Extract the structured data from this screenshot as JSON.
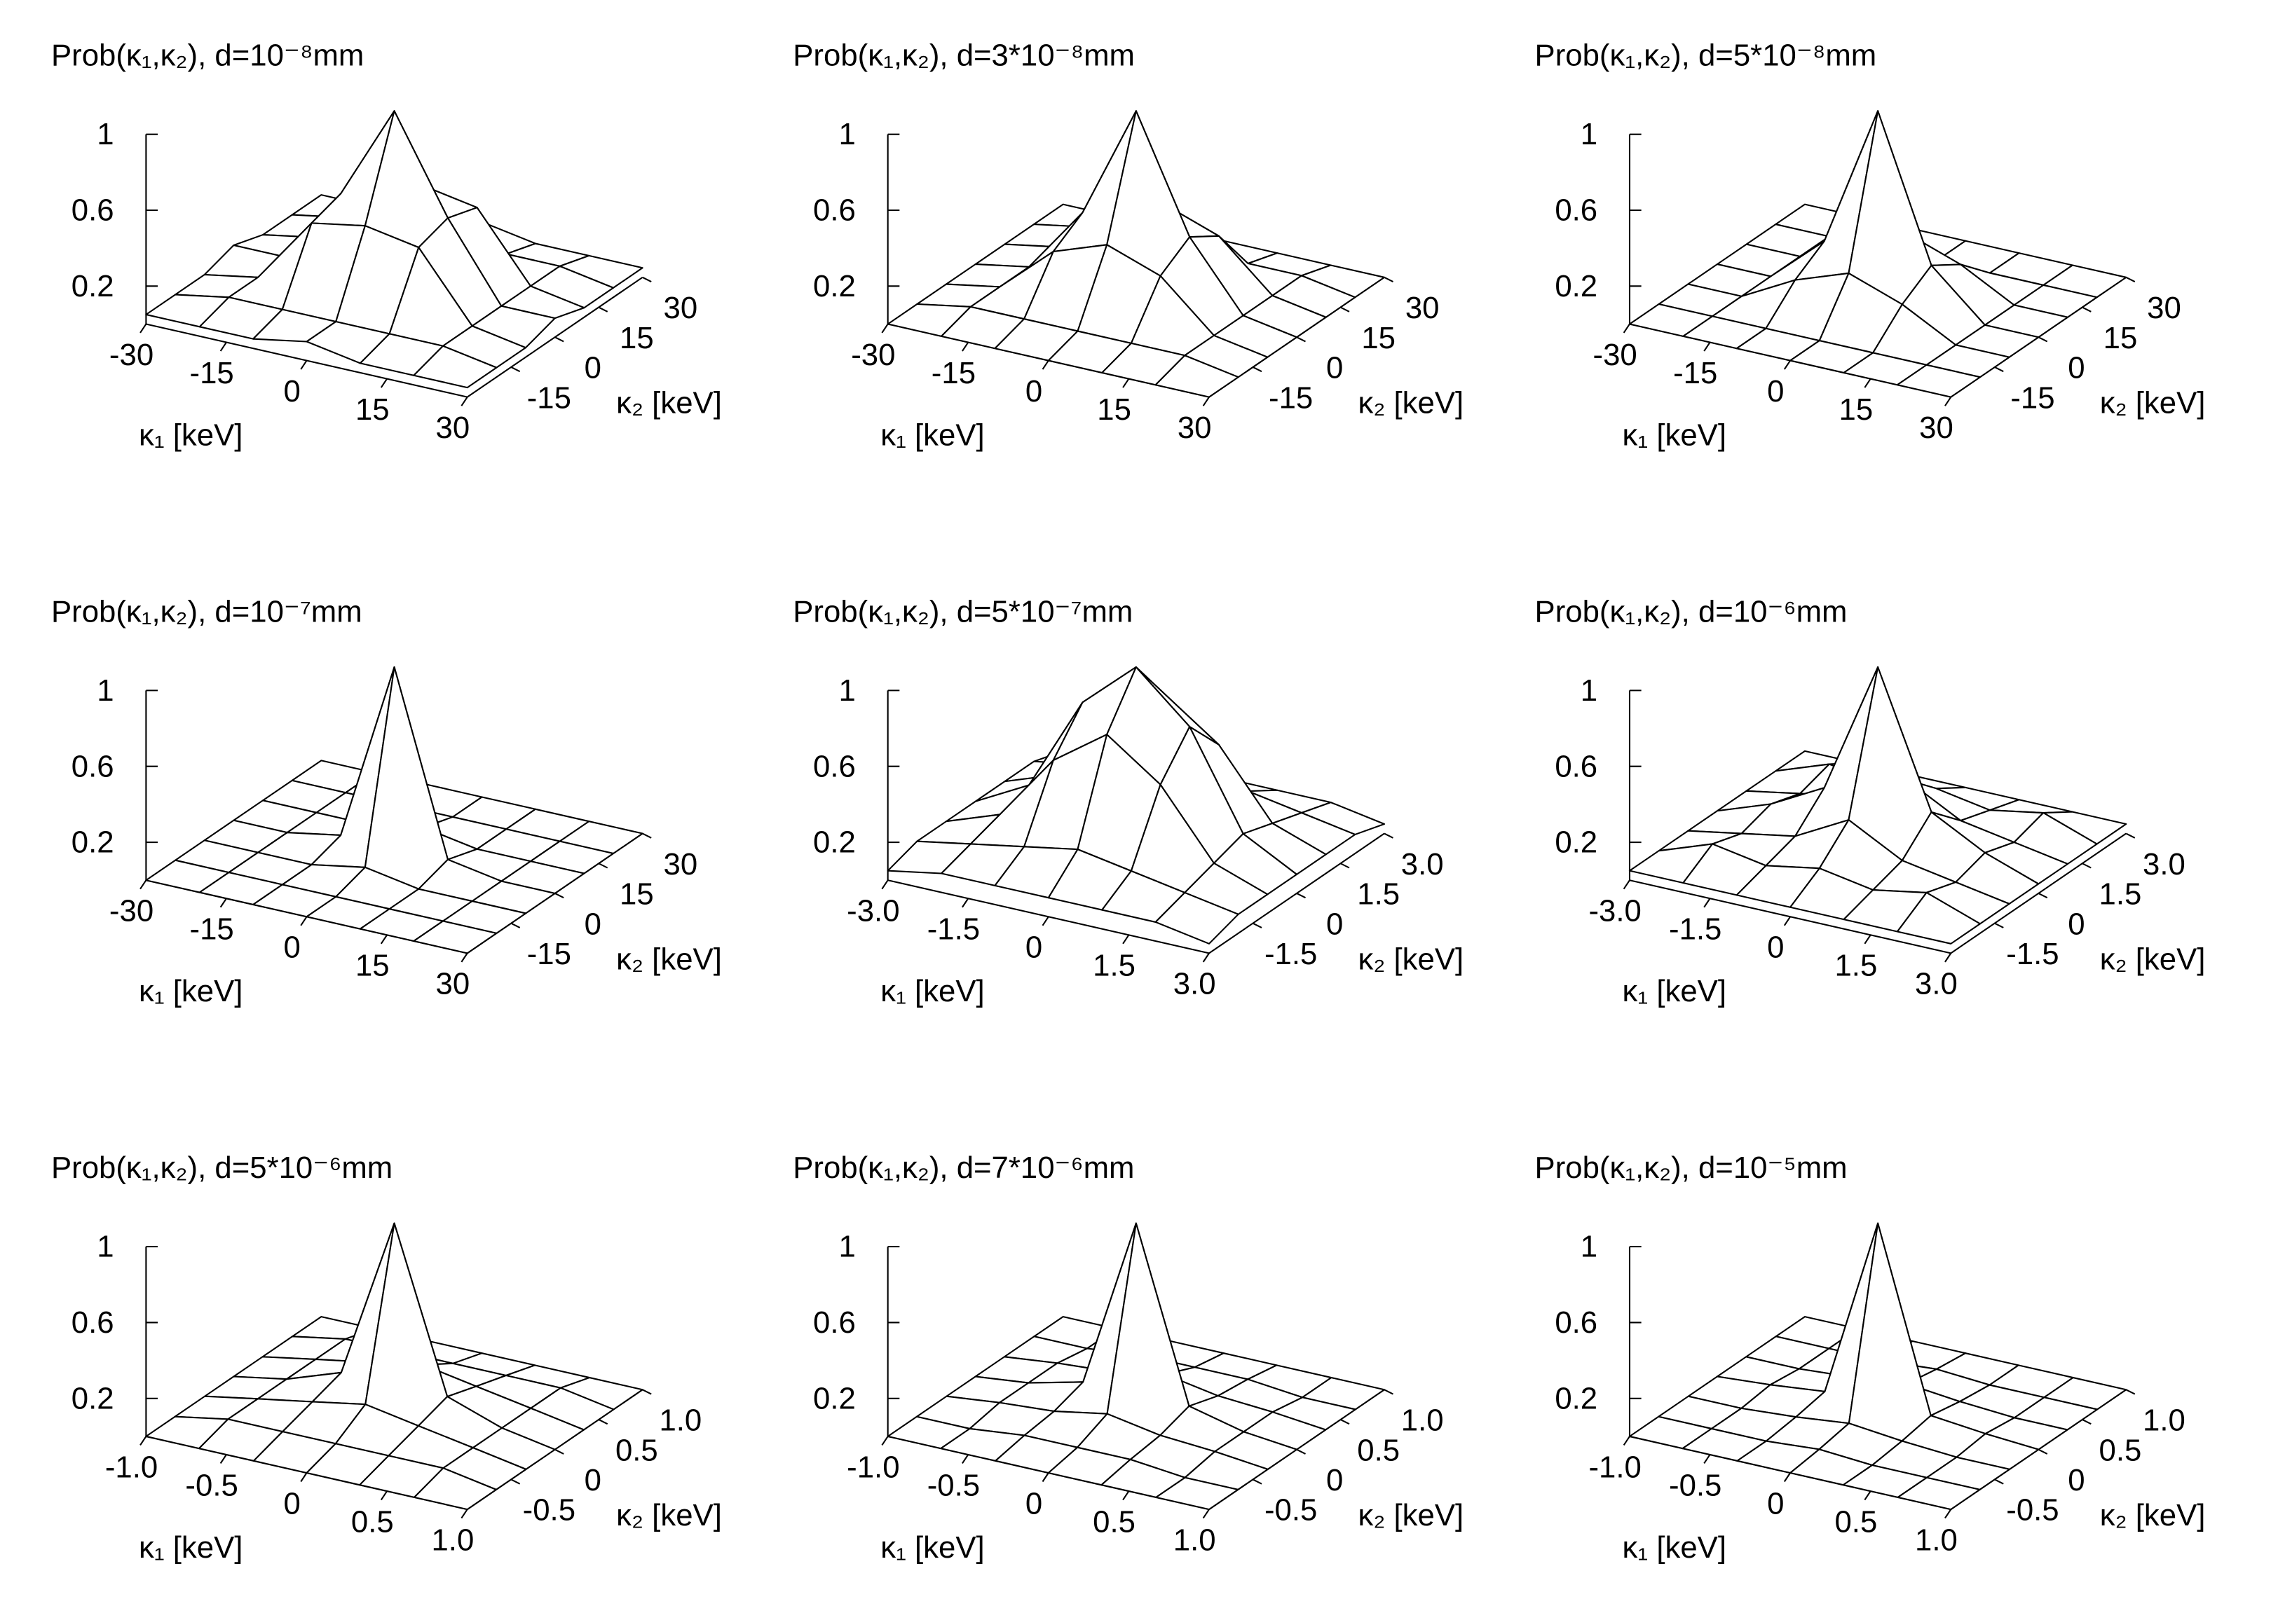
{
  "chart_data": [
    {
      "type": "surface",
      "title": "Prob(κ₁,κ₂), d=10⁻⁸mm",
      "x_label": "κ₁ [keV]",
      "y_label": "κ₂ [keV]",
      "x": [
        -30,
        -20,
        -10,
        0,
        10,
        20,
        30
      ],
      "y": [
        -30,
        -20,
        -10,
        0,
        10,
        20,
        30
      ],
      "z": [
        [
          0.05,
          0.05,
          0.05,
          0.1,
          0.05,
          0.05,
          0.05
        ],
        [
          0.05,
          0.1,
          0.1,
          0.1,
          0.1,
          0.1,
          0.05
        ],
        [
          0.05,
          0.1,
          0.45,
          0.5,
          0.45,
          0.1,
          0.05
        ],
        [
          0.1,
          0.1,
          0.5,
          1,
          0.5,
          0.1,
          0.1
        ],
        [
          0.05,
          0.1,
          0.45,
          0.5,
          0.45,
          0.1,
          0.05
        ],
        [
          0.05,
          0.1,
          0.1,
          0.1,
          0.1,
          0.1,
          0.05
        ],
        [
          0.05,
          0.05,
          0.05,
          0.1,
          0.05,
          0.05,
          0.05
        ]
      ],
      "xlim": [
        -30,
        30
      ],
      "xticks": [
        -30,
        -15,
        0,
        15,
        30
      ],
      "ylim": [
        -30,
        30
      ],
      "yticks": [
        -15,
        0,
        15,
        30
      ],
      "zlim": [
        0,
        1
      ],
      "zticks": [
        0.2,
        0.6,
        1
      ]
    },
    {
      "type": "surface",
      "title": "Prob(κ₁,κ₂), d=3*10⁻⁸mm",
      "x_label": "κ₁ [keV]",
      "y_label": "κ₂ [keV]",
      "x": [
        -30,
        -20,
        -10,
        0,
        10,
        20,
        30
      ],
      "y": [
        -30,
        -20,
        -10,
        0,
        10,
        20,
        30
      ],
      "z": [
        [
          0,
          0,
          0,
          0,
          0,
          0,
          0
        ],
        [
          0,
          0.05,
          0.05,
          0.05,
          0.05,
          0.05,
          0
        ],
        [
          0,
          0.05,
          0.3,
          0.4,
          0.3,
          0.05,
          0
        ],
        [
          0,
          0.05,
          0.4,
          1,
          0.4,
          0.05,
          0
        ],
        [
          0,
          0.05,
          0.3,
          0.4,
          0.3,
          0.05,
          0
        ],
        [
          0,
          0.05,
          0.05,
          0.05,
          0.05,
          0.05,
          0
        ],
        [
          0,
          0,
          0,
          0,
          0,
          0,
          0
        ]
      ],
      "xlim": [
        -30,
        30
      ],
      "xticks": [
        -30,
        -15,
        0,
        15,
        30
      ],
      "ylim": [
        -30,
        30
      ],
      "yticks": [
        -15,
        0,
        15,
        30
      ],
      "zlim": [
        0,
        1
      ],
      "zticks": [
        0.2,
        0.6,
        1
      ]
    },
    {
      "type": "surface",
      "title": "Prob(κ₁,κ₂), d=5*10⁻⁸mm",
      "x_label": "κ₁ [keV]",
      "y_label": "κ₂ [keV]",
      "x": [
        -30,
        -20,
        -10,
        0,
        10,
        20,
        30
      ],
      "y": [
        -30,
        -20,
        -10,
        0,
        10,
        20,
        30
      ],
      "z": [
        [
          0,
          0,
          0,
          0,
          0,
          0,
          0
        ],
        [
          0,
          0,
          0,
          0,
          0,
          0,
          0
        ],
        [
          0,
          0,
          0.15,
          0.25,
          0.15,
          0,
          0
        ],
        [
          0,
          0,
          0.25,
          1,
          0.25,
          0,
          0
        ],
        [
          0,
          0,
          0.15,
          0.25,
          0.15,
          0,
          0
        ],
        [
          0,
          0,
          0,
          0,
          0,
          0,
          0
        ],
        [
          0,
          0,
          0,
          0,
          0,
          0,
          0
        ]
      ],
      "xlim": [
        -30,
        30
      ],
      "xticks": [
        -30,
        -15,
        0,
        15,
        30
      ],
      "ylim": [
        -30,
        30
      ],
      "yticks": [
        -15,
        0,
        15,
        30
      ],
      "zlim": [
        0,
        1
      ],
      "zticks": [
        0.2,
        0.6,
        1
      ]
    },
    {
      "type": "surface",
      "title": "Prob(κ₁,κ₂), d=10⁻⁷mm",
      "x_label": "κ₁ [keV]",
      "y_label": "κ₂ [keV]",
      "x": [
        -30,
        -20,
        -10,
        0,
        10,
        20,
        30
      ],
      "y": [
        -30,
        -20,
        -10,
        0,
        10,
        20,
        30
      ],
      "z": [
        [
          0,
          0,
          0,
          0,
          0,
          0,
          0
        ],
        [
          0,
          0,
          0,
          0,
          0,
          0,
          0
        ],
        [
          0,
          0,
          0,
          0.05,
          0,
          0,
          0
        ],
        [
          0,
          0,
          0.05,
          1,
          0.05,
          0,
          0
        ],
        [
          0,
          0,
          0,
          0.05,
          0,
          0,
          0
        ],
        [
          0,
          0,
          0,
          0,
          0,
          0,
          0
        ],
        [
          0,
          0,
          0,
          0,
          0,
          0,
          0
        ]
      ],
      "xlim": [
        -30,
        30
      ],
      "xticks": [
        -30,
        -15,
        0,
        15,
        30
      ],
      "ylim": [
        -30,
        30
      ],
      "yticks": [
        -15,
        0,
        15,
        30
      ],
      "zlim": [
        0,
        1
      ],
      "zticks": [
        0.2,
        0.6,
        1
      ]
    },
    {
      "type": "surface",
      "title": "Prob(κ₁,κ₂), d=5*10⁻⁷mm",
      "x_label": "κ₁ [keV]",
      "y_label": "κ₂ [keV]",
      "x": [
        -3,
        -2,
        -1,
        0,
        1,
        2,
        3
      ],
      "y": [
        -3,
        -2,
        -1,
        0,
        1,
        2,
        3
      ],
      "z": [
        [
          0.05,
          0.1,
          0.1,
          0.1,
          0.1,
          0.1,
          0.05
        ],
        [
          0.1,
          0.15,
          0.2,
          0.25,
          0.2,
          0.15,
          0.1
        ],
        [
          0.1,
          0.2,
          0.55,
          0.75,
          0.55,
          0.2,
          0.1
        ],
        [
          0.1,
          0.25,
          0.75,
          1,
          0.75,
          0.25,
          0.1
        ],
        [
          0.1,
          0.2,
          0.55,
          0.75,
          0.55,
          0.2,
          0.1
        ],
        [
          0.1,
          0.15,
          0.2,
          0.25,
          0.2,
          0.15,
          0.1
        ],
        [
          0.05,
          0.1,
          0.1,
          0.1,
          0.1,
          0.1,
          0.05
        ]
      ],
      "xlim": [
        -3,
        3
      ],
      "xticks": [
        {
          "value": -3,
          "label": "-3.0"
        },
        -1.5,
        0,
        1.5,
        {
          "value": 3,
          "label": "3.0"
        }
      ],
      "ylim": [
        -3,
        3
      ],
      "yticks": [
        -1.5,
        0,
        1.5,
        {
          "value": 3,
          "label": "3.0"
        }
      ],
      "zlim": [
        0,
        1
      ],
      "zticks": [
        0.2,
        0.6,
        1
      ]
    },
    {
      "type": "surface",
      "title": "Prob(κ₁,κ₂), d=10⁻⁶mm",
      "x_label": "κ₁ [keV]",
      "y_label": "κ₂ [keV]",
      "x": [
        -3,
        -2,
        -1,
        0,
        1,
        2,
        3
      ],
      "y": [
        -3,
        -2,
        -1,
        0,
        1,
        2,
        3
      ],
      "z": [
        [
          0.05,
          0.05,
          0.05,
          0.05,
          0.05,
          0.05,
          0.05
        ],
        [
          0.05,
          0.15,
          0.1,
          0.15,
          0.1,
          0.15,
          0.05
        ],
        [
          0.05,
          0.1,
          0.15,
          0.3,
          0.15,
          0.1,
          0.05
        ],
        [
          0.05,
          0.15,
          0.3,
          1,
          0.3,
          0.15,
          0.05
        ],
        [
          0.05,
          0.1,
          0.15,
          0.3,
          0.15,
          0.1,
          0.05
        ],
        [
          0.05,
          0.15,
          0.1,
          0.15,
          0.1,
          0.15,
          0.05
        ],
        [
          0.05,
          0.05,
          0.05,
          0.05,
          0.05,
          0.05,
          0.05
        ]
      ],
      "xlim": [
        -3,
        3
      ],
      "xticks": [
        {
          "value": -3,
          "label": "-3.0"
        },
        -1.5,
        0,
        1.5,
        {
          "value": 3,
          "label": "3.0"
        }
      ],
      "ylim": [
        -3,
        3
      ],
      "yticks": [
        -1.5,
        0,
        1.5,
        {
          "value": 3,
          "label": "3.0"
        }
      ],
      "zlim": [
        0,
        1
      ],
      "zticks": [
        0.2,
        0.6,
        1
      ]
    },
    {
      "type": "surface",
      "title": "Prob(κ₁,κ₂), d=5*10⁻⁶mm",
      "x_label": "κ₁ [keV]",
      "y_label": "κ₂ [keV]",
      "x": [
        -1,
        -0.67,
        -0.33,
        0,
        0.33,
        0.67,
        1
      ],
      "y": [
        -1,
        -0.67,
        -0.33,
        0,
        0.33,
        0.67,
        1
      ],
      "z": [
        [
          0,
          0,
          0,
          0,
          0,
          0,
          0
        ],
        [
          0,
          0.05,
          0.05,
          0.05,
          0.05,
          0.05,
          0
        ],
        [
          0,
          0.05,
          0.1,
          0.15,
          0.1,
          0.05,
          0
        ],
        [
          0,
          0.05,
          0.15,
          1,
          0.15,
          0.05,
          0
        ],
        [
          0,
          0.05,
          0.1,
          0.15,
          0.1,
          0.05,
          0
        ],
        [
          0,
          0.05,
          0.05,
          0.05,
          0.05,
          0.05,
          0
        ],
        [
          0,
          0,
          0,
          0,
          0,
          0,
          0
        ]
      ],
      "xlim": [
        -1,
        1
      ],
      "xticks": [
        {
          "value": -1,
          "label": "-1.0"
        },
        -0.5,
        0,
        0.5,
        {
          "value": 1,
          "label": "1.0"
        }
      ],
      "ylim": [
        -1,
        1
      ],
      "yticks": [
        -0.5,
        0,
        0.5,
        {
          "value": 1,
          "label": "1.0"
        }
      ],
      "zlim": [
        0,
        1
      ],
      "zticks": [
        0.2,
        0.6,
        1
      ]
    },
    {
      "type": "surface",
      "title": "Prob(κ₁,κ₂), d=7*10⁻⁶mm",
      "x_label": "κ₁ [keV]",
      "y_label": "κ₂ [keV]",
      "x": [
        -1,
        -0.67,
        -0.33,
        0,
        0.33,
        0.67,
        1
      ],
      "y": [
        -1,
        -0.67,
        -0.33,
        0,
        0.33,
        0.67,
        1
      ],
      "z": [
        [
          0,
          0,
          0,
          0,
          0,
          0,
          0
        ],
        [
          0,
          0,
          0.03,
          0.03,
          0.03,
          0,
          0
        ],
        [
          0,
          0.03,
          0.05,
          0.1,
          0.05,
          0.03,
          0
        ],
        [
          0,
          0.03,
          0.1,
          1,
          0.1,
          0.03,
          0
        ],
        [
          0,
          0.03,
          0.05,
          0.1,
          0.05,
          0.03,
          0
        ],
        [
          0,
          0,
          0.03,
          0.03,
          0.03,
          0,
          0
        ],
        [
          0,
          0,
          0,
          0,
          0,
          0,
          0
        ]
      ],
      "xlim": [
        -1,
        1
      ],
      "xticks": [
        {
          "value": -1,
          "label": "-1.0"
        },
        -0.5,
        0,
        0.5,
        {
          "value": 1,
          "label": "1.0"
        }
      ],
      "ylim": [
        -1,
        1
      ],
      "yticks": [
        -0.5,
        0,
        0.5,
        {
          "value": 1,
          "label": "1.0"
        }
      ],
      "zlim": [
        0,
        1
      ],
      "zticks": [
        0.2,
        0.6,
        1
      ]
    },
    {
      "type": "surface",
      "title": "Prob(κ₁,κ₂), d=10⁻⁵mm",
      "x_label": "κ₁ [keV]",
      "y_label": "κ₂ [keV]",
      "x": [
        -1,
        -0.67,
        -0.33,
        0,
        0.33,
        0.67,
        1
      ],
      "y": [
        -1,
        -0.67,
        -0.33,
        0,
        0.33,
        0.67,
        1
      ],
      "z": [
        [
          0,
          0,
          0,
          0,
          0,
          0,
          0
        ],
        [
          0,
          0,
          0,
          0.02,
          0,
          0,
          0
        ],
        [
          0,
          0,
          0.02,
          0.05,
          0.02,
          0,
          0
        ],
        [
          0,
          0.02,
          0.05,
          1,
          0.05,
          0.02,
          0
        ],
        [
          0,
          0,
          0.02,
          0.05,
          0.02,
          0,
          0
        ],
        [
          0,
          0,
          0,
          0.02,
          0,
          0,
          0
        ],
        [
          0,
          0,
          0,
          0,
          0,
          0,
          0
        ]
      ],
      "xlim": [
        -1,
        1
      ],
      "xticks": [
        {
          "value": -1,
          "label": "-1.0"
        },
        -0.5,
        0,
        0.5,
        {
          "value": 1,
          "label": "1.0"
        }
      ],
      "ylim": [
        -1,
        1
      ],
      "yticks": [
        -0.5,
        0,
        0.5,
        {
          "value": 1,
          "label": "1.0"
        }
      ],
      "zlim": [
        0,
        1
      ],
      "zticks": [
        0.2,
        0.6,
        1
      ]
    }
  ]
}
